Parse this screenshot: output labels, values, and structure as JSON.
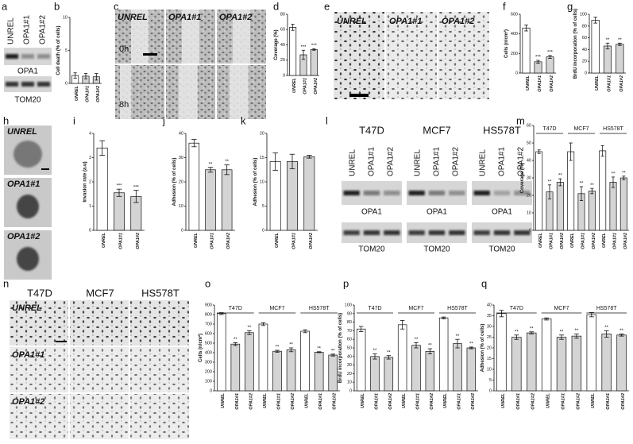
{
  "chart_data": [
    {
      "type": "bar",
      "panel": "b",
      "ylabel": "Cell death (% of cells)",
      "categories": [
        "UNREL",
        "OPA1#1",
        "OPA1#2"
      ],
      "values": [
        1.2,
        1.1,
        1.0
      ],
      "errors": [
        0.4,
        0.4,
        0.5
      ],
      "annotations": [
        null,
        null,
        null
      ],
      "ylim": [
        0,
        10
      ],
      "yticks": [
        0,
        5,
        10
      ],
      "bar_colors": [
        "#ffffff",
        "#d4d4d4",
        "#d4d4d4"
      ]
    },
    {
      "type": "bar",
      "panel": "d",
      "ylabel": "Coverage (%)",
      "categories": [
        "UNREL",
        "OPA1#1",
        "OPA1#2"
      ],
      "values": [
        63,
        27,
        34
      ],
      "errors": [
        4,
        6,
        1
      ],
      "annotations": [
        null,
        "***",
        "***"
      ],
      "ylim": [
        0,
        80
      ],
      "yticks": [
        0,
        20,
        40,
        60,
        80
      ],
      "bar_colors": [
        "#ffffff",
        "#d4d4d4",
        "#d4d4d4"
      ]
    },
    {
      "type": "bar",
      "panel": "f",
      "ylabel": "Cells (n/cm²)",
      "categories": [
        "UNREL",
        "OPA1#1",
        "OPA1#2"
      ],
      "values": [
        460,
        115,
        165
      ],
      "errors": [
        30,
        15,
        15
      ],
      "annotations": [
        null,
        "***",
        "***"
      ],
      "ylim": [
        0,
        600
      ],
      "yticks": [
        0,
        200,
        400,
        600
      ],
      "bar_colors": [
        "#ffffff",
        "#d4d4d4",
        "#d4d4d4"
      ]
    },
    {
      "type": "bar",
      "panel": "g",
      "ylabel": "BrdU incorporation (% of cells)",
      "categories": [
        "UNREL",
        "OPA1#1",
        "OPA1#2"
      ],
      "values": [
        90,
        46,
        49
      ],
      "errors": [
        5,
        5,
        2
      ],
      "annotations": [
        null,
        "**",
        "**"
      ],
      "ylim": [
        0,
        100
      ],
      "yticks": [
        0,
        20,
        40,
        60,
        80,
        100
      ],
      "bar_colors": [
        "#ffffff",
        "#d4d4d4",
        "#d4d4d4"
      ]
    },
    {
      "type": "bar",
      "panel": "i",
      "ylabel": "Invasion rate (a.u)",
      "categories": [
        "UNREL",
        "OPA1#1",
        "OPA1#2"
      ],
      "values": [
        3.4,
        1.55,
        1.4
      ],
      "errors": [
        0.3,
        0.15,
        0.25
      ],
      "annotations": [
        null,
        "***",
        "***"
      ],
      "ylim": [
        0,
        4
      ],
      "yticks": [
        0,
        1,
        2,
        3,
        4
      ],
      "bar_colors": [
        "#ffffff",
        "#d4d4d4",
        "#d4d4d4"
      ]
    },
    {
      "type": "bar",
      "panel": "j",
      "ylabel": "Adhesion (% of cells)",
      "categories": [
        "UNREL",
        "OPA1#1",
        "OPA1#2"
      ],
      "values": [
        36,
        25,
        25
      ],
      "errors": [
        1.5,
        1,
        2
      ],
      "annotations": [
        null,
        "**",
        "**"
      ],
      "ylim": [
        0,
        40
      ],
      "yticks": [
        0,
        10,
        20,
        30,
        40
      ],
      "bar_colors": [
        "#ffffff",
        "#d4d4d4",
        "#d4d4d4"
      ]
    },
    {
      "type": "bar",
      "panel": "k",
      "ylabel": "Adhesion (% of cells)",
      "categories": [
        "UNREL",
        "OPA1#1",
        "OPA1#2"
      ],
      "values": [
        14.2,
        14.2,
        15.2
      ],
      "errors": [
        1.8,
        1.5,
        0.3
      ],
      "annotations": [
        null,
        null,
        null
      ],
      "ylim": [
        0,
        20
      ],
      "yticks": [
        0,
        5,
        10,
        15,
        20
      ],
      "bar_colors": [
        "#ffffff",
        "#d4d4d4",
        "#d4d4d4"
      ]
    },
    {
      "type": "bar",
      "panel": "m",
      "ylabel": "Coverage (%)",
      "groups": [
        "T47D",
        "MCF7",
        "HS578T"
      ],
      "categories": [
        "UNREL",
        "OPA1#1",
        "OPA1#2",
        "UNREL",
        "OPA1#1",
        "OPA1#2",
        "UNREL",
        "OPA1#1",
        "OPA1#2"
      ],
      "values": [
        45,
        22,
        27.5,
        45,
        21,
        22.5,
        45.5,
        27.5,
        30
      ],
      "errors": [
        1,
        4,
        2,
        5,
        4,
        1.5,
        3,
        3,
        1
      ],
      "annotations": [
        null,
        "**",
        "**",
        null,
        "**",
        "**",
        null,
        "**",
        "**"
      ],
      "ylim": [
        0,
        60
      ],
      "yticks": [
        0,
        10,
        20,
        30,
        40,
        50,
        60
      ],
      "bar_colors": [
        "#ffffff",
        "#d4d4d4",
        "#d4d4d4"
      ]
    },
    {
      "type": "bar",
      "panel": "o",
      "ylabel": "Cells (n/cm²)",
      "groups": [
        "T47D",
        "MCF7",
        "HS578T"
      ],
      "categories": [
        "UNREL",
        "OPA1#1",
        "OPA1#2",
        "UNREL",
        "OPA1#1",
        "OPA1#2",
        "UNREL",
        "OPA1#1",
        "OPA1#2"
      ],
      "values": [
        810,
        490,
        610,
        700,
        415,
        430,
        625,
        405,
        375
      ],
      "errors": [
        10,
        15,
        20,
        15,
        10,
        20,
        15,
        5,
        10
      ],
      "annotations": [
        null,
        "**",
        "**",
        null,
        "**",
        "**",
        null,
        "**",
        "**"
      ],
      "ylim": [
        0,
        900
      ],
      "yticks": [
        0,
        100,
        200,
        300,
        400,
        500,
        600,
        700,
        800,
        900
      ],
      "bar_colors": [
        "#ffffff",
        "#d4d4d4",
        "#d4d4d4"
      ]
    },
    {
      "type": "bar",
      "panel": "p",
      "ylabel": "BrdU incorporation (% of cells)",
      "groups": [
        "T47D",
        "MCF7",
        "HS578T"
      ],
      "categories": [
        "UNREL",
        "OPA1#1",
        "OPA1#2",
        "UNREL",
        "OPA1#1",
        "OPA1#2",
        "UNREL",
        "OPA1#1",
        "OPA1#2"
      ],
      "values": [
        72,
        40,
        39,
        77,
        53,
        46,
        85,
        55,
        50
      ],
      "errors": [
        3,
        3,
        2,
        5,
        3,
        3,
        1,
        5,
        1
      ],
      "annotations": [
        null,
        "**",
        "**",
        null,
        "**",
        "**",
        null,
        "**",
        "**"
      ],
      "ylim": [
        0,
        100
      ],
      "yticks": [
        0,
        10,
        20,
        30,
        40,
        50,
        60,
        70,
        80,
        90,
        100
      ],
      "bar_colors": [
        "#ffffff",
        "#d4d4d4",
        "#d4d4d4"
      ]
    },
    {
      "type": "bar",
      "panel": "q",
      "ylabel": "Adhesion (% of cells)",
      "groups": [
        "T47D",
        "MCF7",
        "HS578T"
      ],
      "categories": [
        "UNREL",
        "OPA1#1",
        "OPA1#2",
        "UNREL",
        "OPA1#1",
        "OPA1#2",
        "UNREL",
        "OPA1#1",
        "OPA1#2"
      ],
      "values": [
        36,
        25,
        27,
        33.5,
        25,
        25.5,
        35.5,
        26.5,
        26
      ],
      "errors": [
        1.5,
        1,
        0.5,
        0.5,
        1,
        1,
        1,
        1.5,
        0.5
      ],
      "annotations": [
        null,
        "**",
        "**",
        null,
        "**",
        "**",
        null,
        "**",
        "**"
      ],
      "ylim": [
        0,
        40
      ],
      "yticks": [
        0,
        5,
        10,
        15,
        20,
        25,
        30,
        35,
        40
      ],
      "bar_colors": [
        "#ffffff",
        "#d4d4d4",
        "#d4d4d4"
      ]
    }
  ],
  "image_panels": {
    "a": {
      "letter": "a",
      "lanes": [
        "UNREL",
        "OPA1#1",
        "OPA1#2"
      ],
      "blots": [
        "OPA1",
        "TOM20"
      ]
    },
    "c": {
      "letter": "c",
      "columns": [
        "UNREL",
        "OPA1#1",
        "OPA1#2"
      ],
      "rows": [
        "0h",
        "8h"
      ]
    },
    "e": {
      "letter": "e",
      "columns": [
        "UNREL",
        "OPA1#1",
        "OPA1#2"
      ]
    },
    "h": {
      "letter": "h",
      "rows": [
        "UNREL",
        "OPA1#1",
        "OPA1#2"
      ]
    },
    "l": {
      "letter": "l",
      "cell_lines": [
        {
          "name": "T47D",
          "lanes": [
            "UNREL",
            "OPA1#1",
            "OPA1#2"
          ],
          "blots": [
            "OPA1",
            "TOM20"
          ]
        },
        {
          "name": "MCF7",
          "lanes": [
            "UNREL",
            "OPA1#1",
            "OPA1#2"
          ],
          "blots": [
            "OPA1",
            "TOM20"
          ]
        },
        {
          "name": "HS578T",
          "lanes": [
            "UNREL",
            "OPA1#1",
            "OPA1#2"
          ],
          "blots": [
            "OPA1",
            "TOM20"
          ]
        }
      ]
    },
    "n": {
      "letter": "n",
      "columns": [
        "T47D",
        "MCF7",
        "HS578T"
      ],
      "rows": [
        "UNREL",
        "OPA1#1",
        "OPA1#2"
      ]
    }
  }
}
